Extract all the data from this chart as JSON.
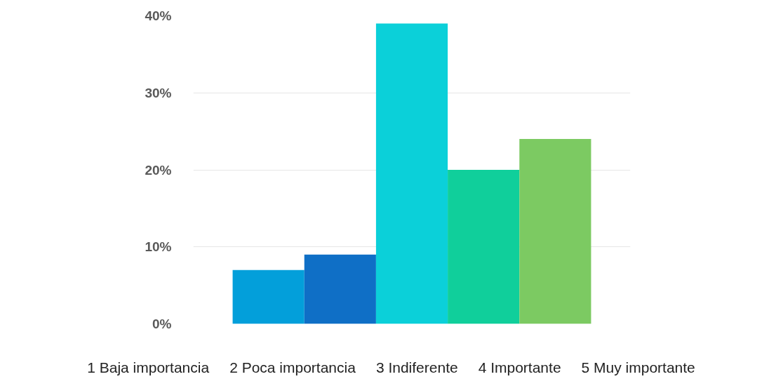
{
  "chart_data": {
    "type": "bar",
    "categories": [
      null
    ],
    "series": [
      {
        "name": "1 Baja importancia",
        "color": "#039fda",
        "values": [
          7
        ]
      },
      {
        "name": "2 Poca importancia",
        "color": "#0f6fc6",
        "values": [
          9
        ]
      },
      {
        "name": "3 Indiferente",
        "color": "#0bd0d9",
        "values": [
          39
        ]
      },
      {
        "name": "4 Importante",
        "color": "#10cf9b",
        "values": [
          20
        ]
      },
      {
        "name": "5 Muy importante",
        "color": "#7cca62",
        "values": [
          24
        ]
      }
    ],
    "ylim": [
      0,
      40
    ],
    "yticks": [
      {
        "value": 0,
        "label": "0%"
      },
      {
        "value": 10,
        "label": "10%"
      },
      {
        "value": 20,
        "label": "20%"
      },
      {
        "value": 30,
        "label": "30%"
      },
      {
        "value": 40,
        "label": "40%"
      }
    ],
    "grid": "y",
    "legend": "bottom",
    "tick_labels": "y"
  }
}
